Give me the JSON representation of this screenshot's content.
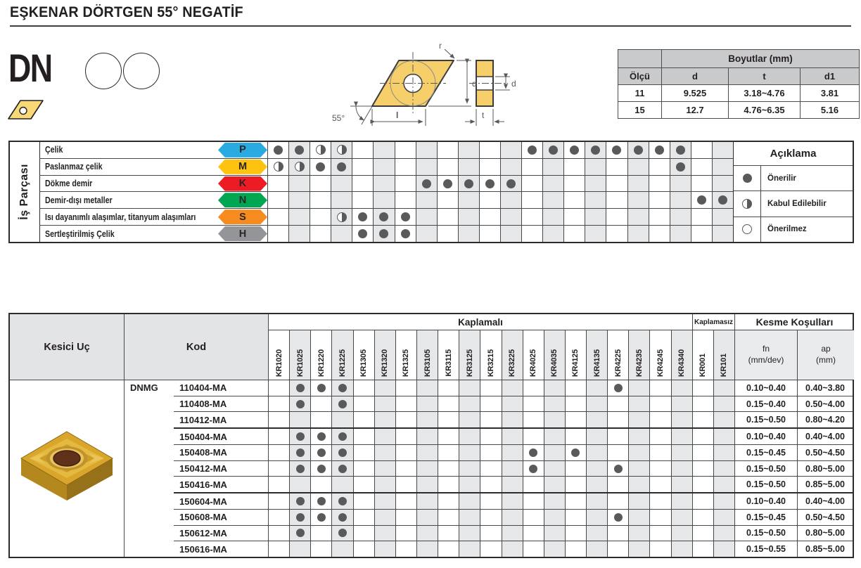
{
  "page": {
    "title": "EŞKENAR DÖRTGEN 55° NEGATİF"
  },
  "profile": {
    "code": "DN"
  },
  "drawing": {
    "angle": "55°",
    "radius_label": "r",
    "height_label": "d",
    "length_label": "l",
    "thickness_label": "t",
    "hole_label": "d"
  },
  "dimensions": {
    "title": "Boyutlar (mm)",
    "col_headers": [
      "Ölçü",
      "d",
      "t",
      "d1"
    ],
    "rows": [
      [
        "11",
        "9.525",
        "3.18~4.76",
        "3.81"
      ],
      [
        "15",
        "12.7",
        "4.76~6.35",
        "5.16"
      ]
    ]
  },
  "grades": [
    "KR1020",
    "KR1025",
    "KR1220",
    "KR1225",
    "KR1305",
    "KR1320",
    "KR1325",
    "KR3105",
    "KR3115",
    "KR3125",
    "KR3215",
    "KR3225",
    "KR4025",
    "KR4035",
    "KR4125",
    "KR4135",
    "KR4225",
    "KR4235",
    "KR4245",
    "KR4340",
    "KR001",
    "KR101"
  ],
  "materials": {
    "group_label": "İş Parçası",
    "rows": [
      {
        "label": "Çelik",
        "letter": "P",
        "color": "#29abe2",
        "full": [
          1,
          2,
          13,
          14,
          15,
          16,
          17,
          18,
          19,
          20
        ],
        "half": [
          3,
          4
        ]
      },
      {
        "label": "Paslanmaz çelik",
        "letter": "M",
        "color": "#ffc20e",
        "full": [
          3,
          4,
          20
        ],
        "half": [
          1,
          2
        ]
      },
      {
        "label": "Dökme demir",
        "letter": "K",
        "color": "#ed1c24",
        "full": [
          8,
          9,
          10,
          11,
          12
        ],
        "half": []
      },
      {
        "label": "Demir-dışı metaller",
        "letter": "N",
        "color": "#00a651",
        "full": [
          21,
          22
        ],
        "half": []
      },
      {
        "label": "Isı dayanımlı alaşımlar, titanyum alaşımları",
        "letter": "S",
        "color": "#f68b1f",
        "full": [
          5,
          6,
          7
        ],
        "half": [
          4
        ]
      },
      {
        "label": "Sertleştirilmiş Çelik",
        "letter": "H",
        "color": "#939598",
        "full": [
          5,
          6,
          7
        ],
        "half": []
      }
    ],
    "legend": {
      "title": "Açıklama",
      "items": [
        {
          "symbol": "full",
          "label": "Önerilir"
        },
        {
          "symbol": "half",
          "label": "Kabul Edilebilir"
        },
        {
          "symbol": "none",
          "label": "Önerilmez"
        }
      ]
    }
  },
  "products": {
    "insert_col_label": "Kesici Uç",
    "code_col_label": "Kod",
    "coated_label": "Kaplamalı",
    "uncoated_label": "Kaplamasız",
    "cutting_label": "Kesme Koşulları",
    "fn_label_1": "fn",
    "fn_label_2": "(mm/dev)",
    "ap_label_1": "ap",
    "ap_label_2": "(mm)",
    "series": "DNMG",
    "rows": [
      {
        "code": "110404-MA",
        "dots": [
          2,
          3,
          4,
          17
        ],
        "fn": "0.10~0.40",
        "ap": "0.40~3.80"
      },
      {
        "code": "110408-MA",
        "dots": [
          2,
          4
        ],
        "fn": "0.15~0.40",
        "ap": "0.50~4.00"
      },
      {
        "code": "110412-MA",
        "dots": [],
        "fn": "0.15~0.50",
        "ap": "0.80~4.20"
      },
      {
        "code": "150404-MA",
        "dots": [
          2,
          3,
          4
        ],
        "fn": "0.10~0.40",
        "ap": "0.40~4.00"
      },
      {
        "code": "150408-MA",
        "dots": [
          2,
          3,
          4,
          13,
          15
        ],
        "fn": "0.15~0.45",
        "ap": "0.50~4.50"
      },
      {
        "code": "150412-MA",
        "dots": [
          2,
          3,
          4,
          13,
          17
        ],
        "fn": "0.15~0.50",
        "ap": "0.80~5.00"
      },
      {
        "code": "150416-MA",
        "dots": [],
        "fn": "0.15~0.50",
        "ap": "0.85~5.00"
      },
      {
        "code": "150604-MA",
        "dots": [
          2,
          3,
          4
        ],
        "fn": "0.10~0.40",
        "ap": "0.40~4.00"
      },
      {
        "code": "150608-MA",
        "dots": [
          2,
          3,
          4,
          17
        ],
        "fn": "0.15~0.45",
        "ap": "0.50~4.50"
      },
      {
        "code": "150612-MA",
        "dots": [
          2,
          4
        ],
        "fn": "0.15~0.50",
        "ap": "0.80~5.00"
      },
      {
        "code": "150616-MA",
        "dots": [],
        "fn": "0.15~0.55",
        "ap": "0.85~5.00"
      }
    ]
  }
}
